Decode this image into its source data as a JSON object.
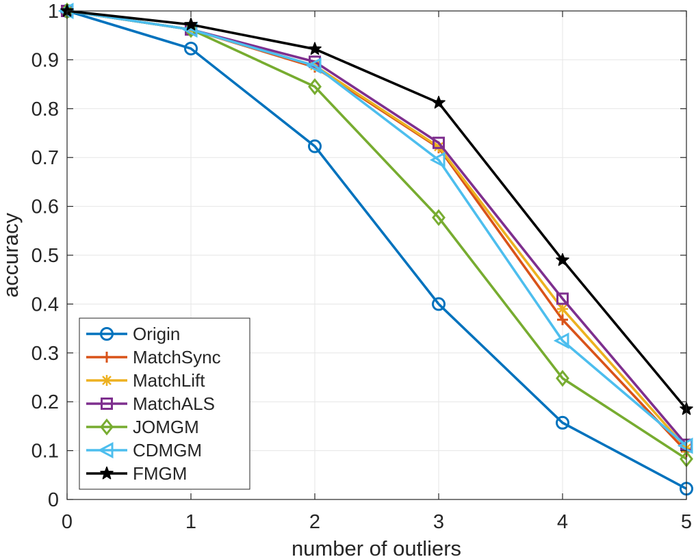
{
  "chart_data": {
    "type": "line",
    "title": "",
    "xlabel": "number of outliers",
    "ylabel": "accuracy",
    "x": [
      0,
      1,
      2,
      3,
      4,
      5
    ],
    "xlim": [
      0,
      5
    ],
    "ylim": [
      0,
      1
    ],
    "x_ticks": [
      "0",
      "1",
      "2",
      "3",
      "4",
      "5"
    ],
    "y_ticks": [
      "0",
      "0.1",
      "0.2",
      "0.3",
      "0.4",
      "0.5",
      "0.6",
      "0.7",
      "0.8",
      "0.9",
      "1"
    ],
    "grid": true,
    "legend_position": "bottom-left",
    "series": [
      {
        "name": "Origin",
        "color": "#0072BD",
        "marker": "circle",
        "values": [
          1.0,
          0.923,
          0.723,
          0.4,
          0.157,
          0.022
        ]
      },
      {
        "name": "MatchSync",
        "color": "#D95319",
        "marker": "plus",
        "values": [
          1.0,
          0.962,
          0.885,
          0.72,
          0.368,
          0.098
        ]
      },
      {
        "name": "MatchLift",
        "color": "#EDB120",
        "marker": "asterisk",
        "values": [
          1.0,
          0.962,
          0.888,
          0.722,
          0.39,
          0.105
        ]
      },
      {
        "name": "MatchALS",
        "color": "#7E2F8E",
        "marker": "square",
        "values": [
          1.0,
          0.962,
          0.896,
          0.73,
          0.411,
          0.112
        ]
      },
      {
        "name": "JOMGM",
        "color": "#77AC30",
        "marker": "diamond",
        "values": [
          1.0,
          0.962,
          0.845,
          0.577,
          0.248,
          0.083
        ]
      },
      {
        "name": "CDMGM",
        "color": "#4DBEEE",
        "marker": "triangle-left",
        "values": [
          1.0,
          0.962,
          0.888,
          0.695,
          0.325,
          0.11
        ]
      },
      {
        "name": "FMGM",
        "color": "#000000",
        "marker": "pentagram",
        "values": [
          1.0,
          0.972,
          0.922,
          0.812,
          0.49,
          0.185
        ]
      }
    ]
  }
}
